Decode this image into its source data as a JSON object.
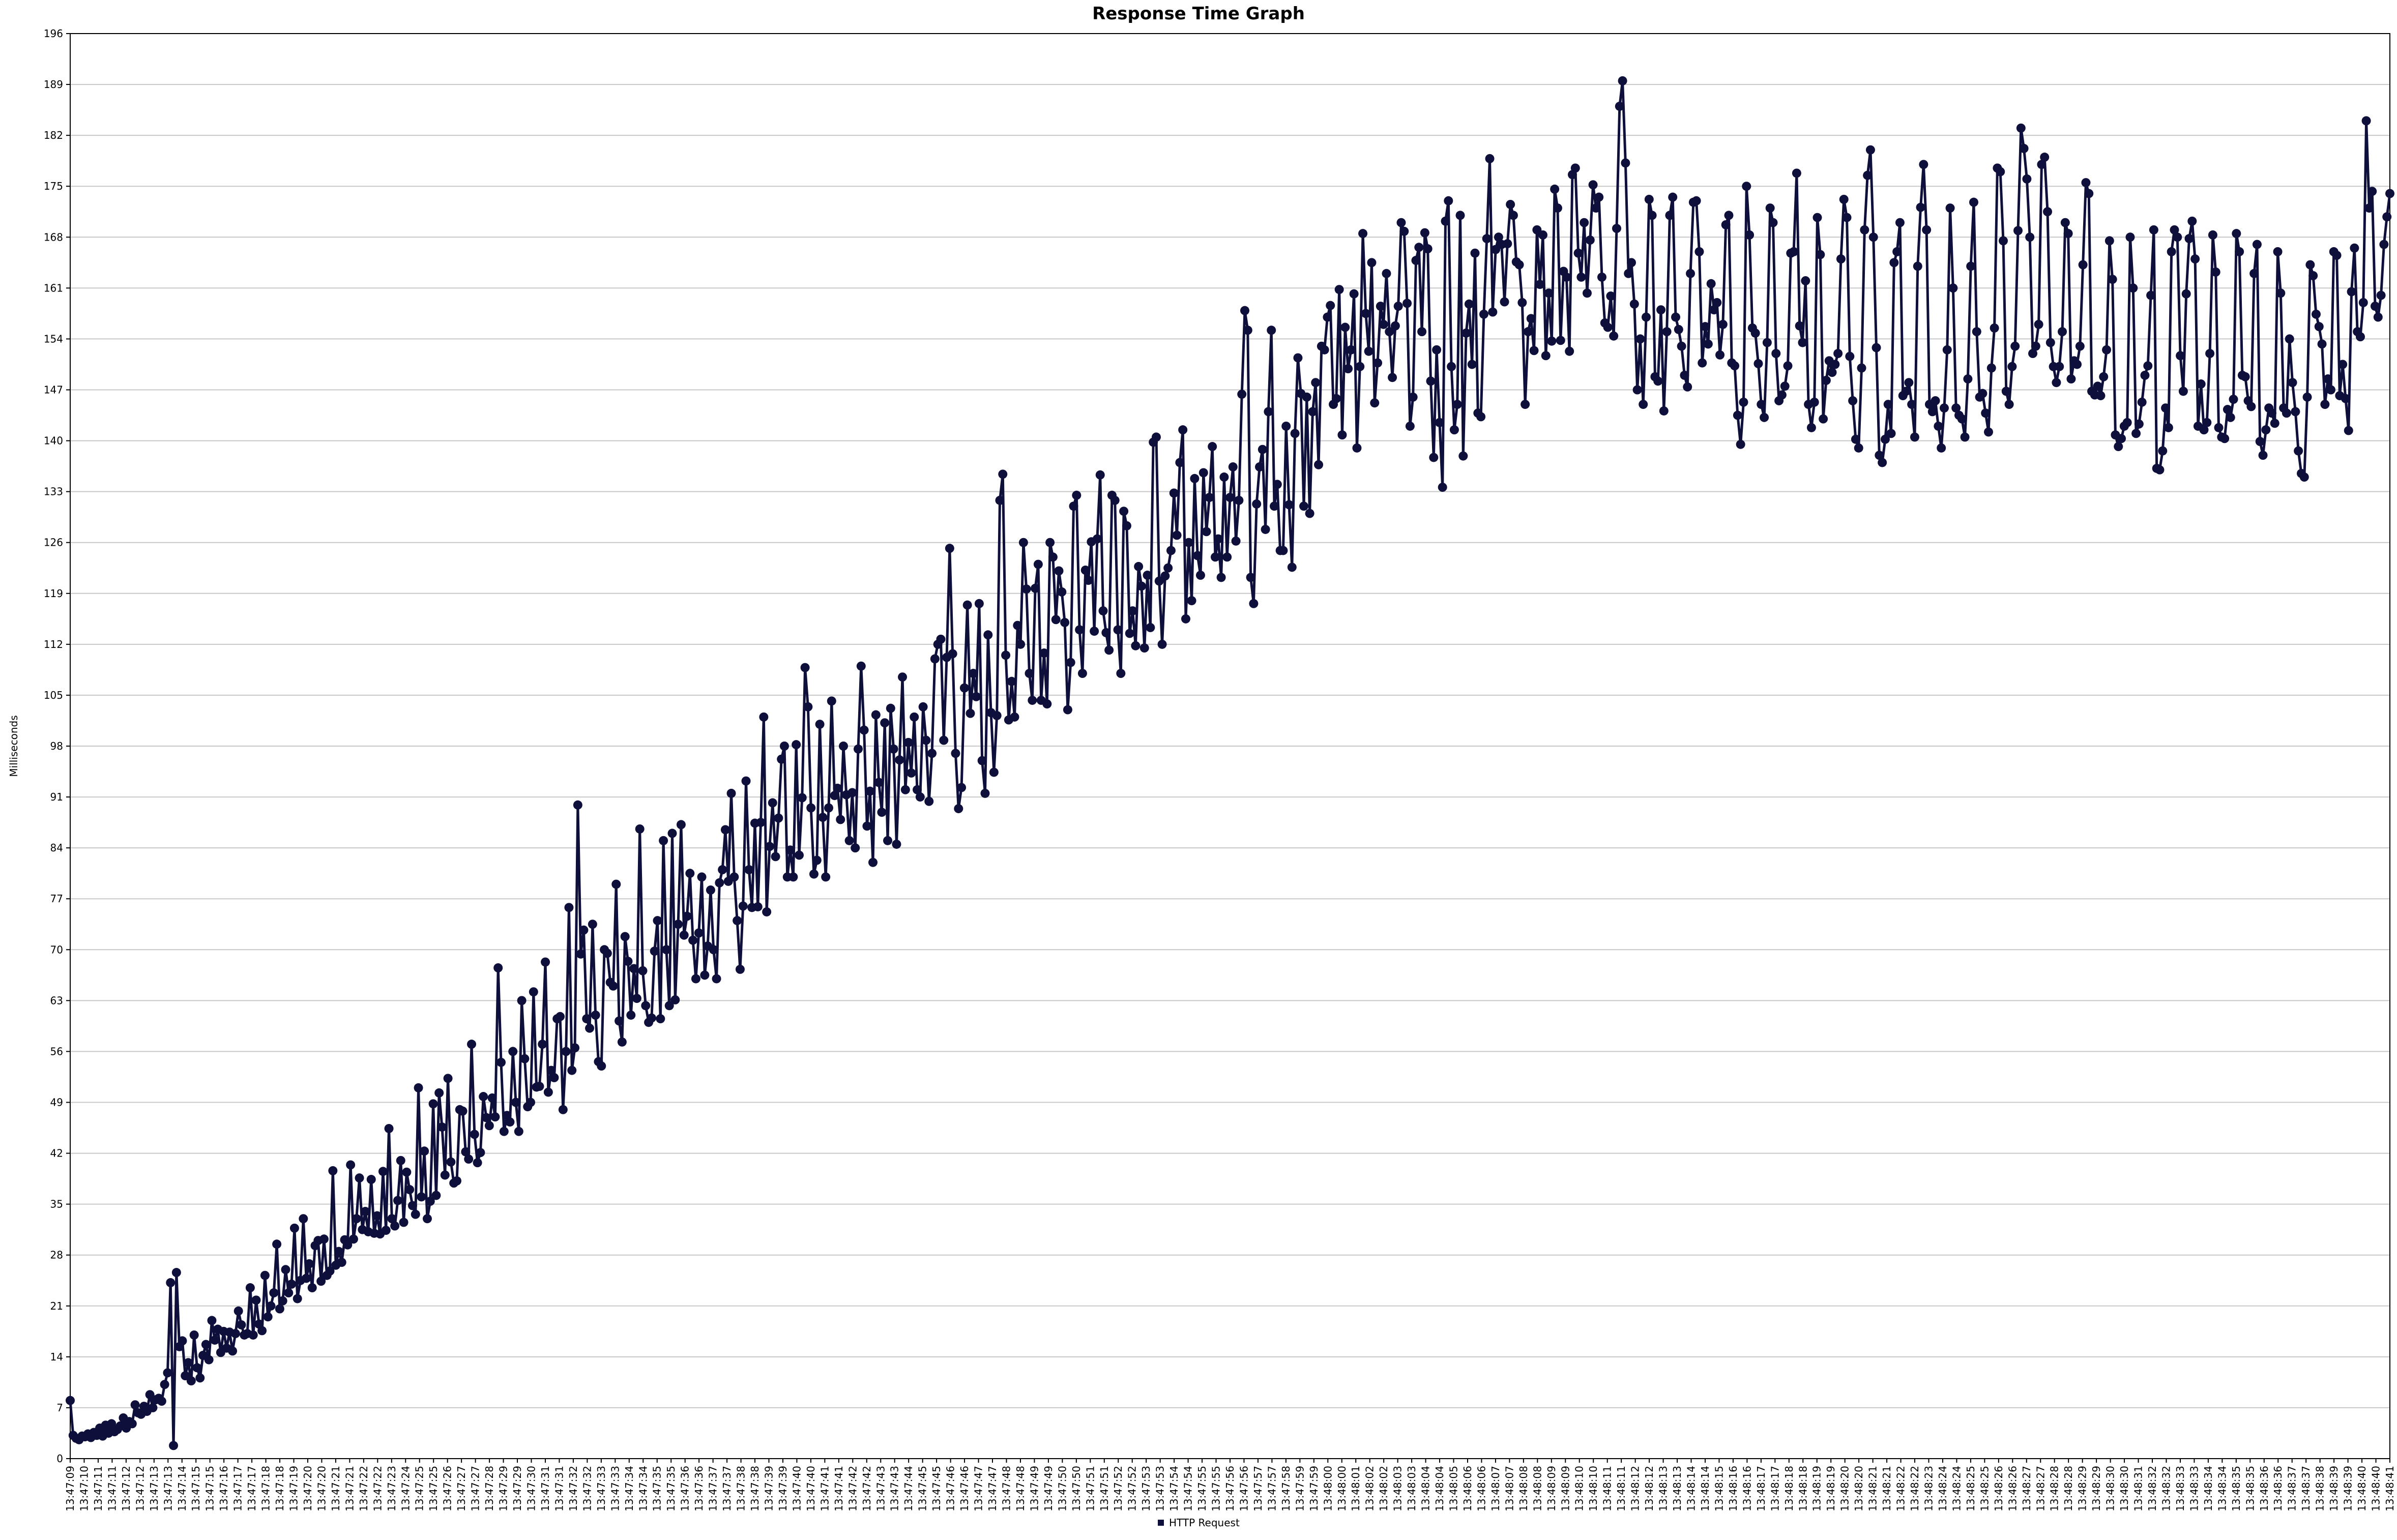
{
  "chart_data": {
    "type": "line",
    "title": "Response Time Graph",
    "xlabel": "",
    "ylabel": "Milliseconds",
    "ylim": [
      0,
      196
    ],
    "y_ticks": [
      0,
      7,
      14,
      21,
      28,
      35,
      42,
      49,
      56,
      63,
      70,
      77,
      84,
      91,
      98,
      105,
      112,
      119,
      126,
      133,
      140,
      147,
      154,
      161,
      168,
      175,
      182,
      189,
      196
    ],
    "x_tick_labels": [
      "13:47:09",
      "13:47:10",
      "13:47:11",
      "13:47:11",
      "13:47:12",
      "13:47:12",
      "13:47:13",
      "13:47:13",
      "13:47:14",
      "13:47:15",
      "13:47:15",
      "13:47:16",
      "13:47:17",
      "13:47:17",
      "13:47:18",
      "13:47:18",
      "13:47:19",
      "13:47:20",
      "13:47:20",
      "13:47:21",
      "13:47:21",
      "13:47:22",
      "13:47:22",
      "13:47:23",
      "13:47:24",
      "13:47:25",
      "13:47:25",
      "13:47:26",
      "13:47:27",
      "13:47:27",
      "13:47:28",
      "13:47:29",
      "13:47:29",
      "13:47:30",
      "13:47:31",
      "13:47:31",
      "13:47:32",
      "13:47:32",
      "13:47:33",
      "13:47:33",
      "13:47:34",
      "13:47:34",
      "13:47:35",
      "13:47:35",
      "13:47:36",
      "13:47:36",
      "13:47:37",
      "13:47:37",
      "13:47:38",
      "13:47:38",
      "13:47:39",
      "13:47:39",
      "13:47:40",
      "13:47:40",
      "13:47:41",
      "13:47:41",
      "13:47:42",
      "13:47:42",
      "13:47:43",
      "13:47:43",
      "13:47:44",
      "13:47:45",
      "13:47:45",
      "13:47:46",
      "13:47:46",
      "13:47:47",
      "13:47:47",
      "13:47:48",
      "13:47:48",
      "13:47:49",
      "13:47:49",
      "13:47:50",
      "13:47:50",
      "13:47:51",
      "13:47:51",
      "13:47:52",
      "13:47:52",
      "13:47:53",
      "13:47:53",
      "13:47:54",
      "13:47:54",
      "13:47:55",
      "13:47:55",
      "13:47:56",
      "13:47:56",
      "13:47:57",
      "13:47:57",
      "13:47:58",
      "13:47:59",
      "13:47:59",
      "13:48:00",
      "13:48:00",
      "13:48:01",
      "13:48:02",
      "13:48:02",
      "13:48:03",
      "13:48:03",
      "13:48:04",
      "13:48:04",
      "13:48:05",
      "13:48:06",
      "13:48:06",
      "13:48:07",
      "13:48:07",
      "13:48:08",
      "13:48:08",
      "13:48:09",
      "13:48:09",
      "13:48:10",
      "13:48:10",
      "13:48:11",
      "13:48:11",
      "13:48:12",
      "13:48:12",
      "13:48:13",
      "13:48:13",
      "13:48:14",
      "13:48:14",
      "13:48:15",
      "13:48:16",
      "13:48:16",
      "13:48:17",
      "13:48:17",
      "13:48:18",
      "13:48:18",
      "13:48:19",
      "13:48:19",
      "13:48:20",
      "13:48:20",
      "13:48:21",
      "13:48:21",
      "13:48:22",
      "13:48:22",
      "13:48:23",
      "13:48:24",
      "13:48:24",
      "13:48:25",
      "13:48:25",
      "13:48:26",
      "13:48:26",
      "13:48:27",
      "13:48:27",
      "13:48:28",
      "13:48:28",
      "13:48:29",
      "13:48:29",
      "13:48:30",
      "13:48:30",
      "13:48:31",
      "13:48:32",
      "13:48:32",
      "13:48:33",
      "13:48:33",
      "13:48:34",
      "13:48:34",
      "13:48:35",
      "13:48:35",
      "13:48:36",
      "13:48:36",
      "13:48:37",
      "13:48:37",
      "13:48:38",
      "13:48:39",
      "13:48:39",
      "13:48:40",
      "13:48:40",
      "13:48:41"
    ],
    "legend": [
      "HTTP Request"
    ],
    "legend_placement": "bottom-center",
    "grid": true,
    "series": [
      {
        "name": "HTTP Request",
        "color": "#0f0f3c",
        "values": [
          8,
          3.2,
          2.8,
          2.6,
          3.1,
          3.0,
          3.4,
          2.9,
          3.6,
          3.2,
          4.2,
          3.1,
          4.6,
          3.5,
          4.8,
          3.7,
          4.0,
          4.5,
          5.6,
          4.2,
          5.1,
          4.8,
          7.4,
          6.3,
          6.1,
          7.2,
          6.5,
          8.8,
          7.0,
          8.1,
          8.3,
          7.9,
          10.2,
          11.8,
          24.2,
          1.8,
          25.6,
          15.4,
          16.2,
          11.4,
          13.2,
          10.7,
          17.0,
          12.5,
          11.1,
          14.2,
          15.7,
          13.6,
          19.0,
          16.3,
          17.8,
          14.6,
          17.5,
          15.2,
          17.4,
          14.8,
          17.2,
          20.3,
          18.4,
          17.0,
          17.2,
          23.5,
          17.0,
          21.8,
          18.5,
          17.6,
          25.2,
          19.5,
          21.0,
          22.8,
          29.5,
          20.6,
          21.7,
          26.0,
          22.8,
          24.0,
          31.7,
          22.0,
          24.5,
          33.0,
          24.8,
          26.8,
          23.5,
          29.3,
          30.0,
          24.4,
          30.2,
          25.2,
          25.8,
          39.6,
          26.6,
          28.5,
          27.0,
          30.1,
          29.4,
          40.4,
          30.2,
          33.0,
          38.6,
          31.5,
          34.0,
          31.2,
          38.4,
          31.0,
          33.4,
          30.9,
          39.5,
          31.4,
          45.4,
          33.0,
          32.0,
          35.5,
          41.0,
          32.5,
          39.4,
          37.0,
          34.8,
          33.6,
          51.0,
          36.0,
          42.3,
          33.0,
          35.4,
          48.8,
          36.2,
          50.3,
          45.6,
          39.0,
          52.3,
          40.8,
          37.9,
          38.2,
          48.0,
          47.8,
          42.2,
          41.2,
          57.0,
          44.6,
          40.7,
          42.1,
          49.8,
          46.9,
          45.8,
          49.6,
          47.0,
          67.5,
          54.5,
          45.0,
          47.2,
          46.3,
          56.0,
          49.0,
          45.0,
          63.0,
          55.0,
          48.4,
          49.0,
          64.2,
          51.1,
          51.2,
          57.0,
          68.3,
          50.4,
          53.4,
          52.4,
          60.5,
          60.8,
          48.0,
          56.0,
          75.8,
          53.4,
          56.5,
          89.9,
          69.4,
          72.7,
          60.5,
          59.2,
          73.5,
          61.0,
          54.6,
          54.0,
          70.0,
          69.5,
          65.5,
          65.0,
          79.0,
          60.2,
          57.3,
          71.8,
          68.4,
          61.0,
          67.4,
          63.3,
          86.6,
          67.1,
          62.3,
          60.0,
          60.6,
          69.8,
          74.0,
          60.5,
          85.0,
          70.0,
          62.3,
          86.0,
          63.1,
          73.5,
          87.2,
          72.0,
          74.6,
          80.5,
          71.3,
          66.0,
          72.3,
          80.0,
          66.5,
          70.5,
          78.2,
          70.0,
          66.0,
          79.2,
          81.0,
          86.5,
          79.4,
          91.5,
          80.0,
          74.0,
          67.3,
          76.0,
          93.2,
          81.0,
          75.8,
          87.4,
          75.9,
          87.5,
          102.0,
          75.2,
          84.2,
          90.2,
          82.8,
          88.1,
          96.2,
          98.0,
          80.0,
          83.7,
          80.0,
          98.2,
          83.0,
          90.9,
          108.8,
          103.4,
          89.5,
          80.4,
          82.3,
          101.0,
          88.2,
          80.0,
          89.5,
          104.2,
          91.2,
          92.2,
          87.9,
          98.0,
          91.3,
          85.0,
          91.6,
          84.0,
          97.6,
          109.0,
          100.2,
          87.0,
          91.8,
          82.0,
          102.3,
          93.0,
          88.9,
          101.2,
          85.0,
          103.2,
          97.6,
          84.5,
          96.1,
          107.5,
          92.0,
          98.5,
          94.3,
          102.0,
          92.0,
          91.0,
          103.4,
          98.8,
          90.4,
          97.0,
          110.0,
          112.0,
          112.7,
          98.8,
          110.2,
          125.2,
          110.7,
          97.0,
          89.4,
          92.3,
          106.0,
          117.4,
          102.5,
          108.0,
          104.8,
          117.6,
          96.0,
          91.5,
          113.3,
          102.6,
          94.4,
          102.2,
          131.8,
          135.4,
          110.5,
          101.6,
          106.9,
          102.0,
          114.6,
          112.0,
          126.0,
          119.6,
          108.0,
          104.3,
          119.7,
          123.0,
          104.3,
          110.8,
          103.8,
          126.0,
          124.0,
          115.4,
          122.1,
          119.2,
          115.0,
          103.0,
          109.5,
          131.0,
          132.5,
          114.0,
          108.0,
          122.2,
          120.8,
          126.1,
          113.8,
          126.5,
          135.3,
          116.6,
          113.6,
          111.2,
          132.5,
          131.8,
          114.0,
          108.0,
          130.3,
          128.3,
          113.5,
          116.6,
          111.8,
          122.7,
          120.0,
          111.5,
          121.5,
          114.3,
          139.8,
          140.5,
          120.7,
          112.0,
          121.4,
          122.5,
          124.9,
          132.8,
          127.0,
          137.0,
          141.5,
          115.5,
          126.0,
          118.0,
          134.8,
          124.2,
          121.5,
          135.6,
          127.5,
          132.2,
          139.2,
          124.0,
          126.5,
          121.2,
          135.0,
          124.0,
          132.2,
          136.4,
          126.2,
          131.8,
          146.4,
          157.9,
          155.2,
          121.2,
          117.6,
          131.3,
          136.4,
          138.8,
          127.8,
          144.0,
          155.2,
          131.0,
          134.0,
          124.9,
          124.9,
          142.0,
          131.2,
          122.6,
          141.0,
          151.4,
          146.5,
          131.0,
          146.0,
          130.0,
          144.0,
          148.0,
          136.7,
          153.0,
          152.5,
          157.0,
          158.6,
          145.0,
          145.8,
          160.8,
          140.8,
          155.6,
          149.9,
          152.5,
          160.2,
          139.0,
          150.2,
          168.5,
          157.5,
          152.3,
          164.5,
          145.2,
          150.7,
          158.5,
          156.0,
          163.0,
          155.0,
          148.7,
          155.8,
          158.5,
          170.0,
          168.8,
          158.9,
          142.0,
          146.0,
          164.8,
          166.6,
          155.0,
          168.6,
          166.4,
          148.2,
          137.7,
          152.5,
          142.5,
          133.6,
          170.2,
          173.0,
          150.2,
          141.5,
          145.0,
          171.0,
          137.9,
          154.8,
          158.8,
          150.5,
          165.8,
          143.8,
          143.3,
          157.4,
          167.8,
          178.8,
          157.7,
          166.3,
          168.0,
          167.0,
          159.1,
          167.1,
          172.5,
          171.0,
          164.6,
          164.2,
          159.0,
          145.0,
          155.0,
          156.8,
          152.4,
          169.0,
          161.5,
          168.3,
          151.7,
          160.3,
          153.7,
          174.6,
          172.0,
          153.8,
          163.3,
          162.5,
          152.3,
          176.6,
          177.5,
          165.8,
          162.5,
          170.0,
          160.3,
          167.6,
          175.2,
          172.0,
          173.5,
          162.5,
          156.2,
          155.6,
          159.9,
          154.4,
          169.2,
          186.0,
          189.5,
          178.2,
          163.0,
          164.5,
          158.8,
          147.0,
          154.0,
          145.0,
          157.0,
          173.2,
          171.0,
          148.8,
          148.2,
          158.0,
          144.1,
          155.0,
          171.0,
          173.5,
          157.0,
          155.3,
          153.0,
          149.0,
          147.4,
          163.0,
          172.8,
          173.0,
          166.0,
          150.7,
          155.7,
          153.3,
          161.6,
          158.0,
          159.0,
          151.8,
          156.0,
          169.7,
          171.0,
          150.7,
          150.3,
          143.5,
          139.5,
          145.3,
          175.0,
          168.3,
          155.5,
          154.8,
          150.6,
          145.0,
          143.2,
          153.5,
          172.0,
          170.0,
          152.0,
          145.5,
          146.3,
          147.5,
          150.3,
          165.8,
          166.0,
          176.8,
          155.8,
          153.5,
          162.0,
          145.0,
          141.8,
          145.3,
          170.7,
          165.6,
          143.0,
          148.3,
          151.0,
          149.4,
          150.5,
          152.0,
          165.0,
          173.2,
          170.7,
          151.6,
          145.5,
          140.2,
          139.0,
          150.0,
          169.0,
          176.5,
          180.0,
          168.0,
          152.8,
          138.0,
          137.0,
          140.2,
          145.0,
          141.0,
          164.5,
          166.0,
          170.0,
          146.2,
          146.8,
          148.0,
          145.0,
          140.5,
          164.0,
          172.1,
          178.0,
          169.0,
          145.0,
          144.0,
          145.5,
          142.0,
          139.0,
          144.5,
          152.5,
          172.0,
          161.0,
          144.5,
          143.5,
          143.0,
          140.5,
          148.5,
          164.0,
          172.8,
          155.0,
          146.0,
          146.5,
          143.8,
          141.2,
          150.0,
          155.5,
          177.5,
          177.0,
          167.5,
          146.8,
          145.0,
          150.2,
          153.0,
          168.9,
          183.0,
          180.2,
          176.0,
          168.0,
          152.0,
          153.0,
          156.0,
          178.0,
          179.0,
          171.5,
          153.5,
          150.2,
          148.0,
          150.2,
          155.0,
          170.0,
          168.5,
          148.5,
          151.0,
          150.5,
          153.0,
          164.2,
          175.5,
          174.0,
          146.8,
          146.3,
          147.5,
          146.2,
          148.8,
          152.5,
          167.5,
          162.2,
          140.8,
          139.2,
          140.3,
          142.0,
          142.5,
          168.0,
          161.0,
          141.0,
          142.3,
          145.3,
          149.0,
          150.3,
          160.0,
          169.0,
          136.2,
          136.0,
          138.6,
          144.5,
          141.8,
          166.0,
          169.0,
          168.0,
          151.7,
          146.8,
          160.2,
          167.8,
          170.2,
          165.0,
          142.0,
          147.8,
          141.5,
          142.5,
          152.0,
          168.3,
          163.2,
          141.8,
          140.5,
          140.3,
          144.3,
          143.2,
          145.7,
          168.5,
          166.0,
          149.0,
          148.8,
          145.5,
          144.7,
          163.0,
          167.0,
          139.9,
          138.0,
          141.5,
          144.5,
          143.8,
          142.4,
          166.0,
          160.3,
          144.5,
          143.8,
          154.0,
          148.0,
          144.0,
          138.6,
          135.5,
          135.0,
          146.0,
          164.2,
          162.7,
          157.4,
          155.7,
          153.3,
          145.0,
          148.5,
          147.0,
          166.0,
          165.5,
          146.2,
          150.5,
          145.8,
          141.4,
          160.5,
          166.5,
          155.0,
          154.3,
          159.0,
          184.0,
          172.0,
          174.3,
          158.5,
          157.0,
          160.0,
          167.0,
          170.8,
          174.0
        ]
      }
    ]
  }
}
